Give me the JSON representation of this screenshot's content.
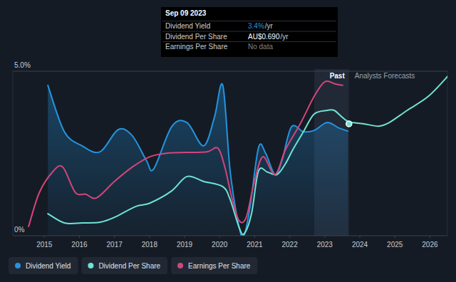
{
  "chart_data": {
    "type": "line",
    "xlim": [
      2014.1,
      2026.5
    ],
    "xticks": [
      2015,
      2016,
      2017,
      2018,
      2019,
      2020,
      2021,
      2022,
      2023,
      2024,
      2025,
      2026
    ],
    "ylim": [
      0,
      5
    ],
    "yticks": [
      {
        "value": 0,
        "label": "0%"
      },
      {
        "value": 5,
        "label": "5.0%"
      }
    ],
    "grid": true,
    "legend": "bottom-left",
    "annotations": [
      "Past",
      "Analysts Forecasts"
    ],
    "past_band": [
      2022.7,
      2023.69
    ],
    "highlight_point": {
      "x": 2023.69,
      "y": 3.4
    },
    "tooltip": {
      "date": "Sep 09 2023",
      "rows": [
        {
          "label": "Dividend Yield",
          "value": "3.4%",
          "unit": "/yr"
        },
        {
          "label": "Dividend Per Share",
          "value": "AU$0.690",
          "unit": "/yr"
        },
        {
          "label": "Earnings Per Share",
          "value": "No data"
        }
      ]
    },
    "series": [
      {
        "name": "Dividend Yield",
        "color": "#2394df",
        "type": "area",
        "x": [
          2015.1,
          2015.57,
          2016.08,
          2016.59,
          2017.1,
          2017.5,
          2017.91,
          2018.12,
          2018.63,
          2019.07,
          2019.54,
          2019.85,
          2020.09,
          2020.3,
          2020.56,
          2020.7,
          2020.87,
          2021.11,
          2021.31,
          2021.58,
          2021.78,
          2022.05,
          2022.39,
          2022.7,
          2023.07,
          2023.41,
          2023.66
        ],
        "values": [
          4.57,
          3.16,
          2.73,
          2.55,
          3.22,
          3.05,
          2.29,
          2.03,
          3.31,
          3.44,
          2.73,
          3.59,
          4.57,
          1.97,
          0.24,
          0.02,
          0.89,
          2.68,
          2.51,
          1.86,
          2.29,
          3.31,
          3.16,
          3.2,
          3.44,
          3.27,
          3.18
        ]
      },
      {
        "name": "Dividend Per Share",
        "color": "#6fe3d2",
        "type": "line",
        "x": [
          2015.1,
          2015.57,
          2016.08,
          2016.59,
          2017.0,
          2017.61,
          2018.01,
          2018.63,
          2019.07,
          2019.54,
          2020.09,
          2020.3,
          2020.56,
          2020.7,
          2020.91,
          2021.11,
          2021.37,
          2021.64,
          2021.88,
          2022.09,
          2022.39,
          2022.7,
          2023.07,
          2023.27,
          2023.51,
          2023.7,
          2024.12,
          2024.53,
          2024.84,
          2025.35,
          2025.96,
          2026.53
        ],
        "values": [
          0.67,
          0.39,
          0.39,
          0.41,
          0.56,
          0.89,
          0.99,
          1.36,
          1.8,
          1.65,
          1.49,
          1.1,
          0.24,
          0.06,
          0.67,
          1.97,
          1.93,
          1.86,
          2.19,
          2.62,
          3.16,
          3.7,
          3.81,
          3.81,
          3.59,
          3.46,
          3.4,
          3.33,
          3.44,
          3.81,
          4.24,
          4.87
        ]
      },
      {
        "name": "Earnings Per Share",
        "color": "#d3457c",
        "type": "line",
        "x": [
          2014.55,
          2014.86,
          2015.26,
          2015.53,
          2015.88,
          2016.18,
          2016.49,
          2017.0,
          2017.5,
          2018.01,
          2018.52,
          2019.03,
          2019.64,
          2019.95,
          2020.15,
          2020.36,
          2020.56,
          2020.76,
          2020.97,
          2021.23,
          2021.58,
          2021.88,
          2022.29,
          2022.7,
          2023.0,
          2023.31,
          2023.51
        ],
        "values": [
          0.28,
          1.32,
          1.97,
          2.08,
          1.32,
          1.26,
          1.15,
          1.65,
          2.08,
          2.4,
          2.51,
          2.53,
          2.55,
          2.66,
          2.08,
          1.1,
          0.45,
          0.56,
          1.54,
          2.4,
          1.86,
          2.62,
          3.38,
          4.24,
          4.68,
          4.61,
          4.57
        ]
      }
    ]
  }
}
